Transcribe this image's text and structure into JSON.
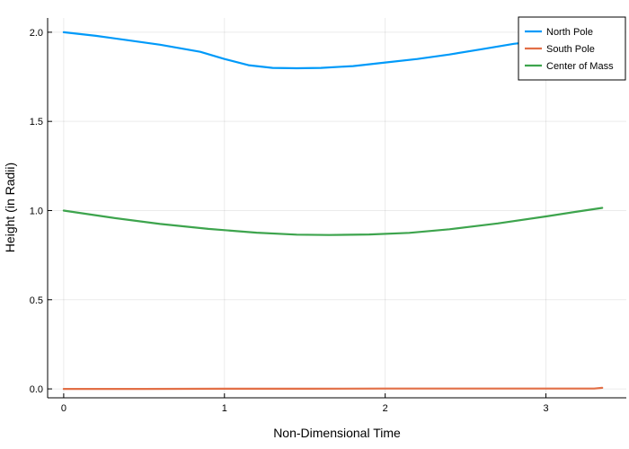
{
  "chart_data": {
    "type": "line",
    "title": "",
    "xlabel": "Non-Dimensional Time",
    "ylabel": "Height (in Radii)",
    "xlim": [
      -0.1,
      3.5
    ],
    "ylim": [
      -0.05,
      2.08
    ],
    "xticks": [
      0,
      1,
      2,
      3
    ],
    "xtick_labels": [
      "0",
      "1",
      "2",
      "3"
    ],
    "yticks": [
      0.0,
      0.5,
      1.0,
      1.5,
      2.0
    ],
    "ytick_labels": [
      "0.0",
      "0.5",
      "1.0",
      "1.5",
      "2.0"
    ],
    "grid": true,
    "legend_position": "top-right",
    "series": [
      {
        "name": "North Pole",
        "color": "#009af9",
        "x": [
          0,
          0.2,
          0.4,
          0.6,
          0.85,
          1.0,
          1.15,
          1.3,
          1.45,
          1.6,
          1.8,
          2.0,
          2.2,
          2.4,
          2.6,
          2.8,
          3.0,
          3.2,
          3.35
        ],
        "y": [
          2.0,
          1.98,
          1.955,
          1.93,
          1.89,
          1.85,
          1.815,
          1.8,
          1.798,
          1.8,
          1.81,
          1.83,
          1.85,
          1.875,
          1.905,
          1.935,
          1.955,
          1.96,
          1.96
        ]
      },
      {
        "name": "South Pole",
        "color": "#e26f46",
        "x": [
          0,
          0.5,
          1.0,
          1.5,
          2.0,
          2.5,
          3.0,
          3.3,
          3.35
        ],
        "y": [
          0.0,
          0.0,
          0.001,
          0.001,
          0.002,
          0.002,
          0.002,
          0.002,
          0.006
        ]
      },
      {
        "name": "Center of Mass",
        "color": "#3da44d",
        "x": [
          0,
          0.3,
          0.6,
          0.9,
          1.2,
          1.45,
          1.65,
          1.9,
          2.15,
          2.4,
          2.7,
          3.0,
          3.2,
          3.35
        ],
        "y": [
          1.0,
          0.96,
          0.925,
          0.897,
          0.876,
          0.865,
          0.863,
          0.866,
          0.875,
          0.895,
          0.928,
          0.967,
          0.995,
          1.015
        ]
      }
    ]
  }
}
